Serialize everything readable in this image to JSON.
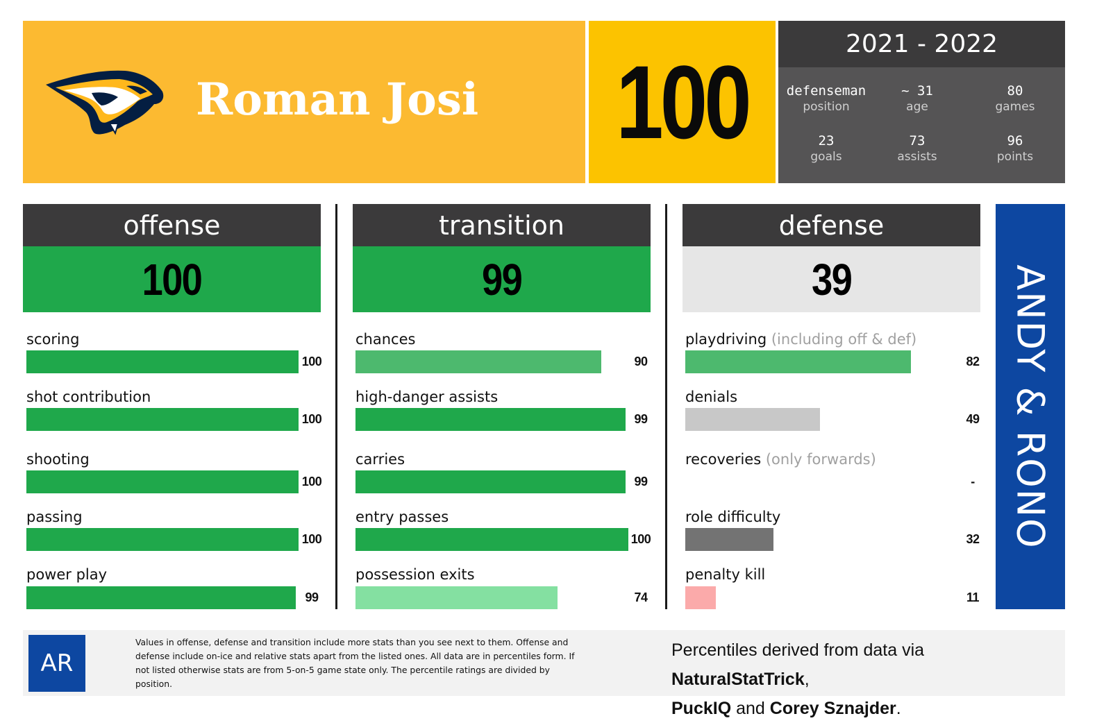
{
  "header": {
    "player_name": "Roman Josi",
    "overall_rating": "100",
    "season": "2021 - 2022",
    "logo_icon": "nashville-predators-logo",
    "info": [
      {
        "value": "defenseman",
        "label": "position"
      },
      {
        "value": "~ 31",
        "label": "age"
      },
      {
        "value": "80",
        "label": "games"
      },
      {
        "value": "23",
        "label": "goals"
      },
      {
        "value": "73",
        "label": "assists"
      },
      {
        "value": "96",
        "label": "points"
      }
    ]
  },
  "columns": {
    "offense": {
      "title": "offense",
      "score": "100",
      "score_color": "#1FA84B",
      "metrics": [
        {
          "label": "scoring",
          "note": "",
          "value": "100",
          "percentile": 100,
          "color": "#1FA84B"
        },
        {
          "label": "shot contribution",
          "note": "",
          "value": "100",
          "percentile": 100,
          "color": "#1FA84B"
        },
        {
          "label": "shooting",
          "note": "",
          "value": "100",
          "percentile": 100,
          "color": "#1FA84B"
        },
        {
          "label": "passing",
          "note": "",
          "value": "100",
          "percentile": 100,
          "color": "#1FA84B"
        },
        {
          "label": "power play",
          "note": "",
          "value": "99",
          "percentile": 99,
          "color": "#1FA84B"
        }
      ]
    },
    "transition": {
      "title": "transition",
      "score": "99",
      "score_color": "#1FA84B",
      "metrics": [
        {
          "label": "chances",
          "note": "",
          "value": "90",
          "percentile": 90,
          "color": "#4DB96E"
        },
        {
          "label": "high-danger assists",
          "note": "",
          "value": "99",
          "percentile": 99,
          "color": "#1FA84B"
        },
        {
          "label": "carries",
          "note": "",
          "value": "99",
          "percentile": 99,
          "color": "#1FA84B"
        },
        {
          "label": "entry passes",
          "note": "",
          "value": "100",
          "percentile": 100,
          "color": "#1FA84B"
        },
        {
          "label": "possession exits",
          "note": "",
          "value": "74",
          "percentile": 74,
          "color": "#84E0A1"
        }
      ]
    },
    "defense": {
      "title": "defense",
      "score": "39",
      "score_color": "#E6E6E6",
      "metrics": [
        {
          "label": "playdriving",
          "note": "(including off & def)",
          "value": "82",
          "percentile": 82,
          "color": "#4DB96E"
        },
        {
          "label": "denials",
          "note": "",
          "value": "49",
          "percentile": 49,
          "color": "#C8C8C8"
        },
        {
          "label": "recoveries",
          "note": "(only forwards)",
          "value": "-",
          "percentile": 0,
          "color": "#C8C8C8"
        },
        {
          "label": "role difficulty",
          "note": "",
          "value": "32",
          "percentile": 32,
          "color": "#737373"
        },
        {
          "label": "penalty kill",
          "note": "",
          "value": "11",
          "percentile": 11,
          "color": "#FBAAAA"
        }
      ]
    }
  },
  "brand": {
    "text": "ANDY & RONO",
    "color": "#0D47A1"
  },
  "footer": {
    "logo_text": "AR",
    "footnote": "Values in offense, defense and transition include more stats than you see next to them. Offense and defense include on-ice and relative stats apart from the listed ones. All data are in percentiles form. If not listed otherwise stats are from 5-on-5 game state only. The percentile ratings are divided by position.",
    "credits_prefix": "Percentiles derived from data via ",
    "credit_1": "NaturalStatTrick",
    "credit_sep_1": ",",
    "credit_2": "PuckIQ",
    "credit_sep_2": " and ",
    "credit_3": "Corey Sznajder",
    "credit_end": "."
  }
}
